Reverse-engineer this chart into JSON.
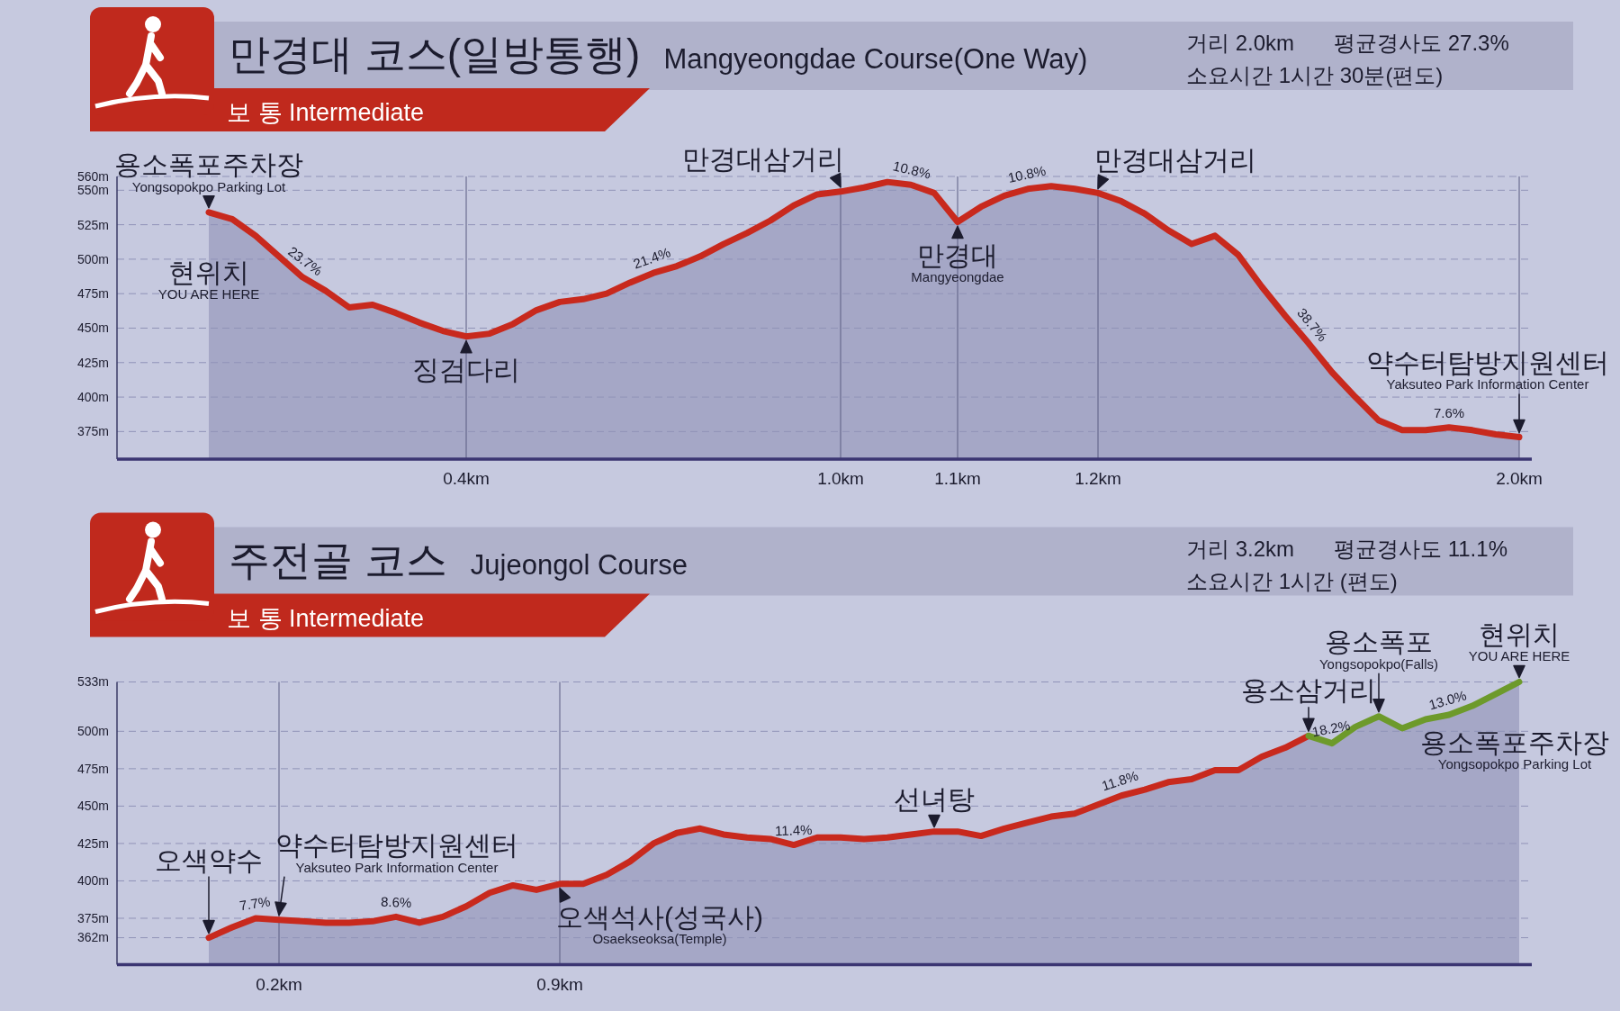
{
  "chart_data": [
    {
      "type": "area",
      "title": "만경대 코스(일방통행)",
      "subtitle": "Mangyeongdae Course(One Way)",
      "annotations": [
        "보 통 Intermediate",
        "거리 2.0km",
        "평균경사도 27.3%",
        "소요시간 1시간 30분(편도)",
        {
          "text": "용소폭포주차장\nYongsopokpo Parking Lot",
          "y": 534
        },
        {
          "text": "현위치\nYOU ARE HERE",
          "y": 534
        },
        {
          "text": "23.7%",
          "y": 487
        },
        {
          "text": "징검다리",
          "x": "0.4km",
          "y": 444
        },
        {
          "text": "21.4%",
          "y": 490
        },
        {
          "text": "만경대삼거리",
          "x": "1.0km",
          "y": 549
        },
        {
          "text": "10.8%",
          "y": 554
        },
        {
          "text": "만경대\nMangyeongdae",
          "x": "1.1km",
          "y": 527
        },
        {
          "text": "10.8%",
          "y": 551
        },
        {
          "text": "만경대삼거리",
          "x": "1.2km",
          "y": 548
        },
        {
          "text": "38.7%",
          "y": 439
        },
        {
          "text": "7.6%",
          "y": 378
        },
        {
          "text": "약수터탐방지원센터\nYaksuteo Park Information Center",
          "x": "2.0km",
          "y": 371
        }
      ],
      "categories": [
        null,
        null,
        null,
        null,
        null,
        null,
        null,
        null,
        null,
        null,
        null,
        "0.4km",
        null,
        null,
        null,
        null,
        null,
        null,
        null,
        null,
        null,
        null,
        null,
        null,
        null,
        null,
        null,
        "1.0km",
        null,
        null,
        null,
        null,
        "1.1km",
        null,
        null,
        null,
        null,
        null,
        "1.2km",
        null,
        null,
        null,
        null,
        null,
        null,
        null,
        null,
        null,
        null,
        null,
        null,
        null,
        null,
        null,
        null,
        null,
        "2.0km"
      ],
      "series": [
        {
          "color": "#c8291d",
          "values": [
            534,
            529,
            517,
            502,
            487,
            477,
            465,
            467,
            461,
            454,
            448,
            444,
            446,
            453,
            463,
            469,
            471,
            475,
            483,
            490,
            495,
            502,
            511,
            519,
            528,
            539,
            547,
            549,
            552,
            556,
            554,
            548,
            527,
            538,
            546,
            551,
            553,
            551,
            548,
            542,
            533,
            521,
            511,
            517,
            503,
            480,
            459,
            439,
            418,
            400,
            383,
            376,
            376,
            378,
            376,
            373,
            371
          ]
        }
      ],
      "ylim": [
        355,
        560
      ],
      "yticks": [
        {
          "value": 375,
          "label": "375m"
        },
        {
          "value": 400,
          "label": "400m"
        },
        {
          "value": 425,
          "label": "425m"
        },
        {
          "value": 450,
          "label": "450m"
        },
        {
          "value": 475,
          "label": "475m"
        },
        {
          "value": 500,
          "label": "500m"
        },
        {
          "value": 525,
          "label": "525m"
        },
        {
          "value": 550,
          "label": "550m"
        },
        {
          "value": 560,
          "label": "560m"
        }
      ],
      "grid": true
    },
    {
      "type": "area",
      "title": "주전골 코스",
      "subtitle": "Jujeongol Course",
      "annotations": [
        "보 통 Intermediate",
        "거리 3.2km",
        "평균경사도 11.1%",
        "소요시간 1시간 (편도)",
        {
          "text": "오색약수",
          "y": 362
        },
        {
          "text": "7.7%",
          "y": 375
        },
        {
          "text": "약수터탐방지원센터\nYaksuteo Park Information Center",
          "x": "0.2km",
          "y": 374
        },
        {
          "text": "8.6%",
          "y": 376
        },
        {
          "text": "오색석사(성국사)\nOsaekseoksa(Temple)",
          "x": "0.9km",
          "y": 398
        },
        {
          "text": "11.4%",
          "y": 424
        },
        {
          "text": "선녀탕",
          "y": 433
        },
        {
          "text": "11.8%",
          "y": 457
        },
        {
          "text": "용소삼거리",
          "y": 497
        },
        {
          "text": "18.2%",
          "y": 492
        },
        {
          "text": "용소폭포\nYongsopokpo(Falls)",
          "y": 510
        },
        {
          "text": "13.0%",
          "y": 511
        },
        {
          "text": "현위치\nYOU ARE HERE",
          "y": 533
        },
        {
          "text": "용소폭포주차장\nYongsopokpo Parking Lot",
          "y": 533
        }
      ],
      "categories": [
        null,
        null,
        null,
        "0.2km",
        null,
        null,
        null,
        null,
        null,
        null,
        null,
        null,
        null,
        null,
        null,
        "0.9km",
        null,
        null,
        null,
        null,
        null,
        null,
        null,
        null,
        null,
        null,
        null,
        null,
        null,
        null,
        null,
        null,
        null,
        null,
        null,
        null,
        null,
        null,
        null,
        null,
        null,
        null,
        null,
        null,
        null,
        null,
        null,
        null,
        null,
        null,
        null,
        null,
        null,
        null,
        null,
        null,
        null
      ],
      "series": [
        {
          "color": "#c8291d",
          "values": [
            362,
            369,
            375,
            374,
            373,
            372,
            372,
            373,
            376,
            372,
            376,
            383,
            392,
            397,
            394,
            398,
            398,
            404,
            413,
            425,
            432,
            435,
            431,
            429,
            428,
            424,
            429,
            429,
            428,
            429,
            431,
            433,
            433,
            430,
            435,
            439,
            443,
            445,
            451,
            457,
            461,
            466,
            468,
            474,
            474,
            483,
            489,
            497,
            null,
            null,
            null,
            null,
            null,
            null,
            null,
            null,
            null
          ]
        },
        {
          "color": "#6d9a2b",
          "values": [
            null,
            null,
            null,
            null,
            null,
            null,
            null,
            null,
            null,
            null,
            null,
            null,
            null,
            null,
            null,
            null,
            null,
            null,
            null,
            null,
            null,
            null,
            null,
            null,
            null,
            null,
            null,
            null,
            null,
            null,
            null,
            null,
            null,
            null,
            null,
            null,
            null,
            null,
            null,
            null,
            null,
            null,
            null,
            null,
            null,
            null,
            null,
            497,
            492,
            503,
            510,
            502,
            508,
            511,
            517,
            525,
            533
          ]
        }
      ],
      "ylim": [
        344,
        533
      ],
      "yticks": [
        {
          "value": 362,
          "label": "362m"
        },
        {
          "value": 375,
          "label": "375m"
        },
        {
          "value": 400,
          "label": "400m"
        },
        {
          "value": 425,
          "label": "425m"
        },
        {
          "value": 450,
          "label": "450m"
        },
        {
          "value": 475,
          "label": "475m"
        },
        {
          "value": 500,
          "label": "500m"
        },
        {
          "value": 533,
          "label": "533m"
        }
      ],
      "grid": true
    }
  ]
}
